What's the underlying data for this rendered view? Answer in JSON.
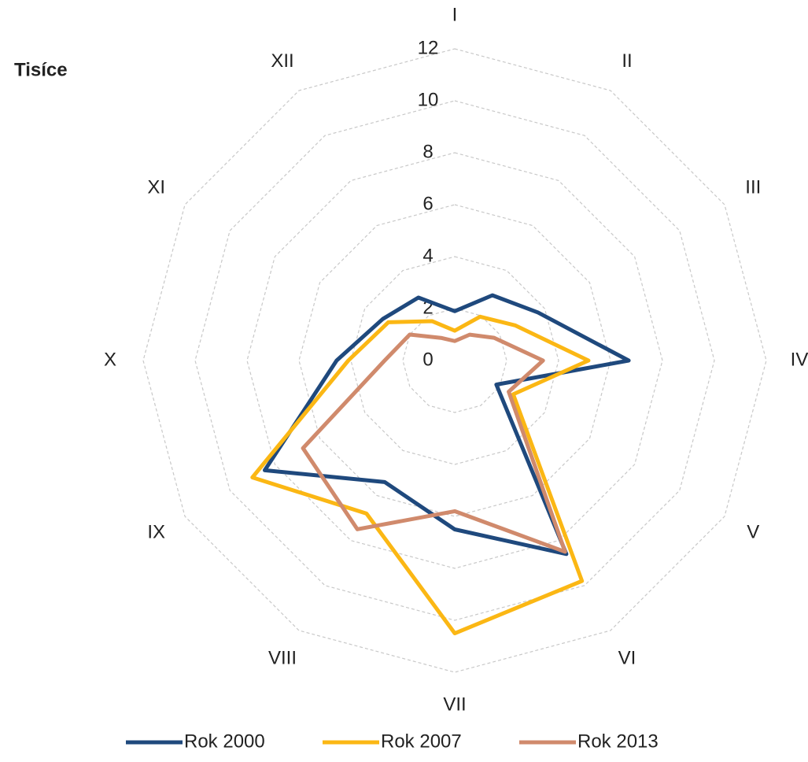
{
  "chart_data": {
    "type": "radar",
    "unit_label": "Tisíce",
    "categories": [
      "I",
      "II",
      "III",
      "IV",
      "V",
      "VI",
      "VII",
      "VIII",
      "IX",
      "X",
      "XI",
      "XII"
    ],
    "series": [
      {
        "name": "Rok 2000",
        "color": "#1f497d",
        "values": [
          1.9,
          2.9,
          3.7,
          6.7,
          1.85,
          8.6,
          6.5,
          5.4,
          8.45,
          4.55,
          3.2,
          2.8
        ]
      },
      {
        "name": "Rok 2007",
        "color": "#fbb714",
        "values": [
          1.15,
          1.95,
          2.7,
          5.15,
          2.6,
          9.8,
          10.5,
          6.8,
          9.0,
          4.1,
          2.95,
          1.75
        ]
      },
      {
        "name": "Rok 2013",
        "color": "#d08a6c",
        "values": [
          0.75,
          1.15,
          1.75,
          3.4,
          2.4,
          8.5,
          5.8,
          7.5,
          6.75,
          2.7,
          2.0,
          1.0
        ]
      }
    ],
    "ylim": [
      0,
      12
    ],
    "yticks": [
      0,
      2,
      4,
      6,
      8,
      10,
      12
    ],
    "grid": true,
    "legend": "bottom"
  }
}
